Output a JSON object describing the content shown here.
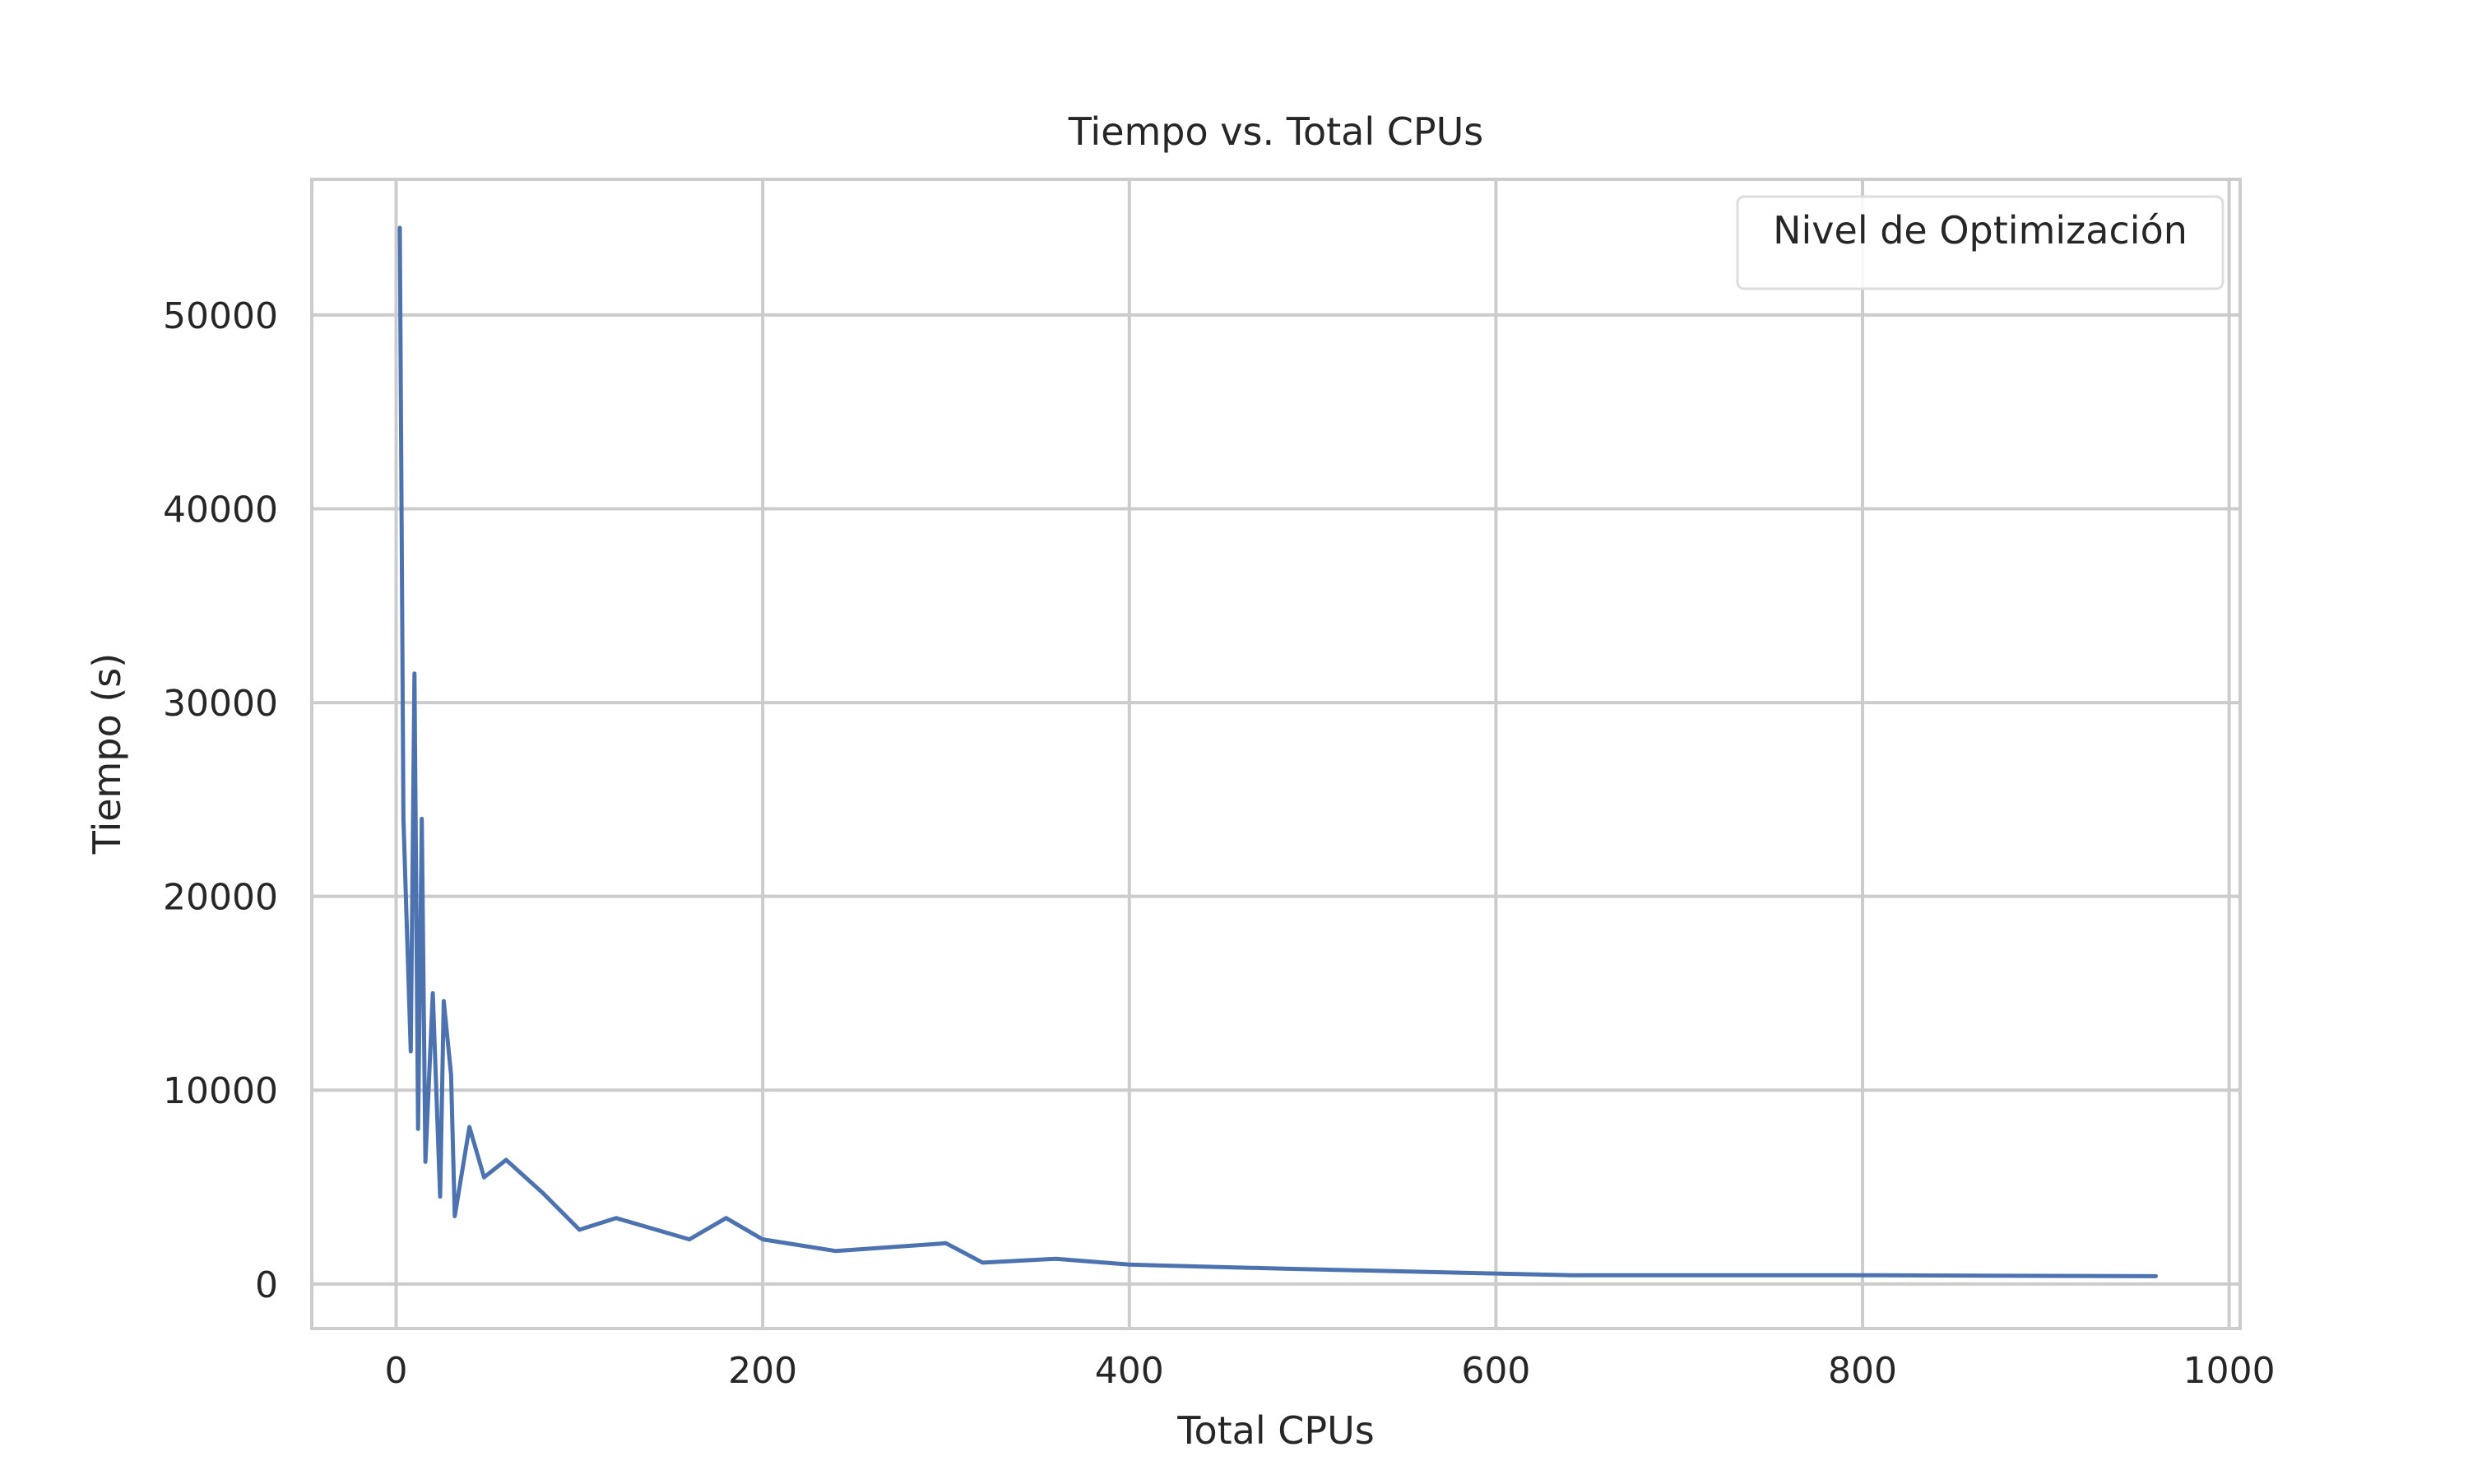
{
  "chart_data": {
    "type": "line",
    "title": "Tiempo vs. Total CPUs",
    "xlabel": "Total CPUs",
    "ylabel": "Tiempo (s)",
    "xlim": [
      -46,
      1006
    ],
    "ylim": [
      -2300,
      57000
    ],
    "x_ticks": [
      0,
      200,
      400,
      600,
      800,
      1000
    ],
    "y_ticks": [
      0,
      10000,
      20000,
      30000,
      40000,
      50000
    ],
    "x_tick_labels": [
      "0",
      "200",
      "400",
      "600",
      "800",
      "1000"
    ],
    "y_tick_labels": [
      "0",
      "10000",
      "20000",
      "30000",
      "40000",
      "50000"
    ],
    "grid": true,
    "legend": {
      "title": "Nivel de Optimización",
      "placement": "top-right"
    },
    "colors": {
      "line": "#4c72b0",
      "grid": "#cccccc",
      "frame": "#cccccc",
      "text": "#262626"
    },
    "series": [
      {
        "x": [
          2,
          4,
          8,
          10,
          12,
          14,
          16,
          20,
          24,
          26,
          30,
          32,
          40,
          48,
          60,
          80,
          100,
          120,
          160,
          180,
          200,
          240,
          300,
          320,
          360,
          400,
          480,
          640,
          800,
          960
        ],
        "y": [
          54500,
          24000,
          12000,
          31500,
          8000,
          24000,
          6300,
          15000,
          4500,
          14600,
          10800,
          3500,
          8100,
          5500,
          6400,
          4700,
          2800,
          3400,
          2300,
          3400,
          2300,
          1700,
          2100,
          1100,
          1300,
          1000,
          800,
          450,
          450,
          400
        ]
      }
    ]
  }
}
